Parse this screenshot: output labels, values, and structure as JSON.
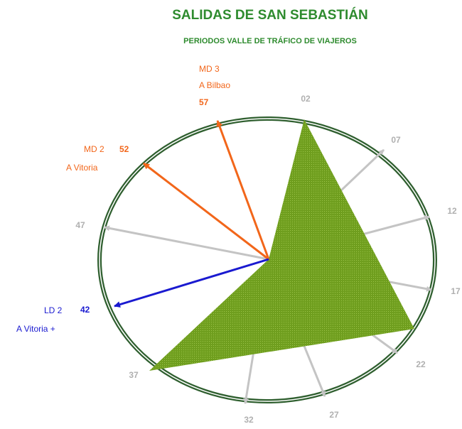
{
  "header": {
    "title": "SALIDAS DE SAN SEBASTIÁN",
    "subtitle": "PERIODOS VALLE DE TRÁFICO DE VIAJEROS"
  },
  "minutes": [
    "02",
    "07",
    "12",
    "17",
    "22",
    "27",
    "32",
    "37",
    "47"
  ],
  "trains": [
    {
      "service": "MD 3",
      "destination": "A Bilbao",
      "minute": "57"
    },
    {
      "service": "MD 2",
      "destination": "A Vitoria",
      "minute": "52"
    },
    {
      "service": "LD 2",
      "destination": "A Vitoria +",
      "minute": "42"
    }
  ]
}
